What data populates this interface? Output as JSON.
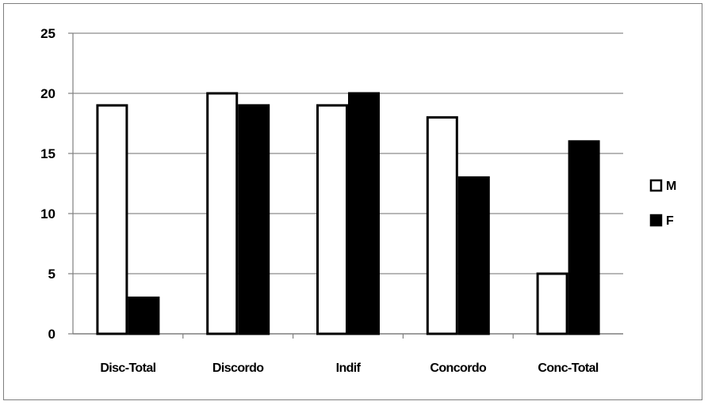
{
  "chart_data": {
    "type": "bar",
    "categories": [
      "Disc-Total",
      "Discordo",
      "Indif",
      "Concordo",
      "Conc-Total"
    ],
    "series": [
      {
        "name": "M",
        "values": [
          19,
          20,
          19,
          18,
          5
        ],
        "color": "#ffffff"
      },
      {
        "name": "F",
        "values": [
          3,
          19,
          20,
          13,
          16
        ],
        "color": "#000000"
      }
    ],
    "yticks": [
      "0",
      "5",
      "10",
      "15",
      "20",
      "25"
    ],
    "ylim": [
      0,
      25
    ],
    "grid": true,
    "legend_position": "right",
    "gridline_color": "#8c8c8c"
  }
}
